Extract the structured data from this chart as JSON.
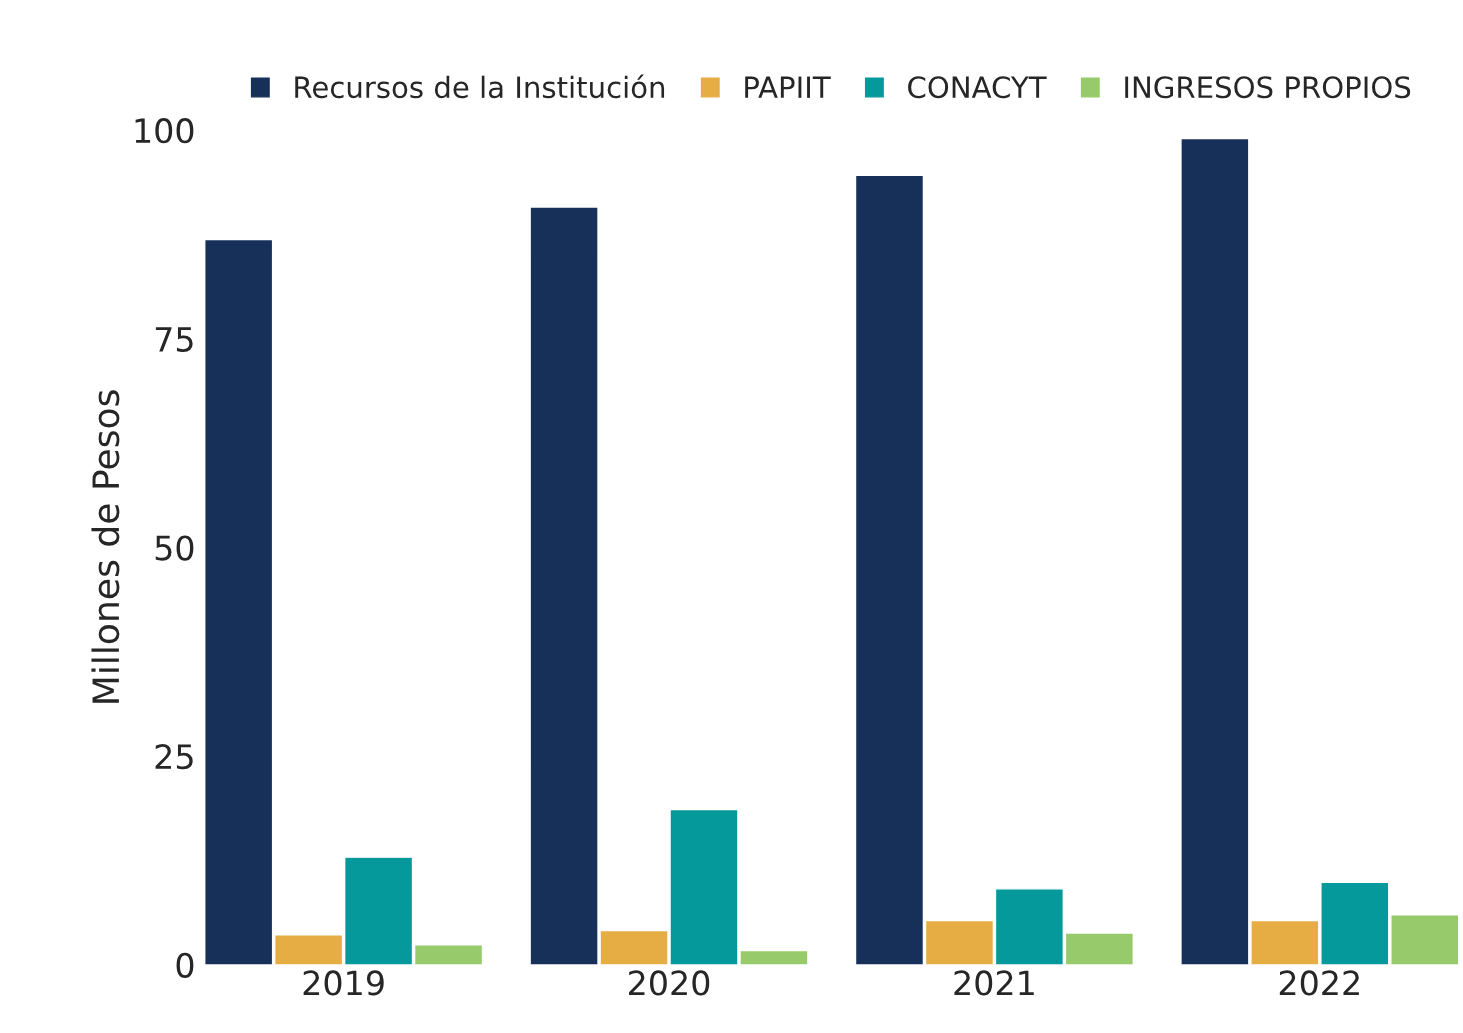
{
  "chart_data": {
    "type": "bar",
    "ylabel": "Millones de Pesos",
    "categories": [
      "2019",
      "2020",
      "2021",
      "2022"
    ],
    "series": [
      {
        "name": "Recursos de la Institución",
        "color": "#17305a",
        "values": [
          86.9,
          90.8,
          94.6,
          99.0
        ]
      },
      {
        "name": "PAPIIT",
        "color": "#e6ad45",
        "values": [
          3.6,
          4.1,
          5.3,
          5.3
        ]
      },
      {
        "name": "CONACYT",
        "color": "#06999c",
        "values": [
          12.9,
          18.6,
          9.1,
          9.9
        ]
      },
      {
        "name": "INGRESOS PROPIOS",
        "color": "#97ca6a",
        "values": [
          2.4,
          1.7,
          3.8,
          6.0
        ]
      }
    ],
    "ylim": [
      0,
      100
    ],
    "yticks": [
      0,
      25,
      50,
      75,
      100
    ],
    "grid": false,
    "legend": "top"
  }
}
